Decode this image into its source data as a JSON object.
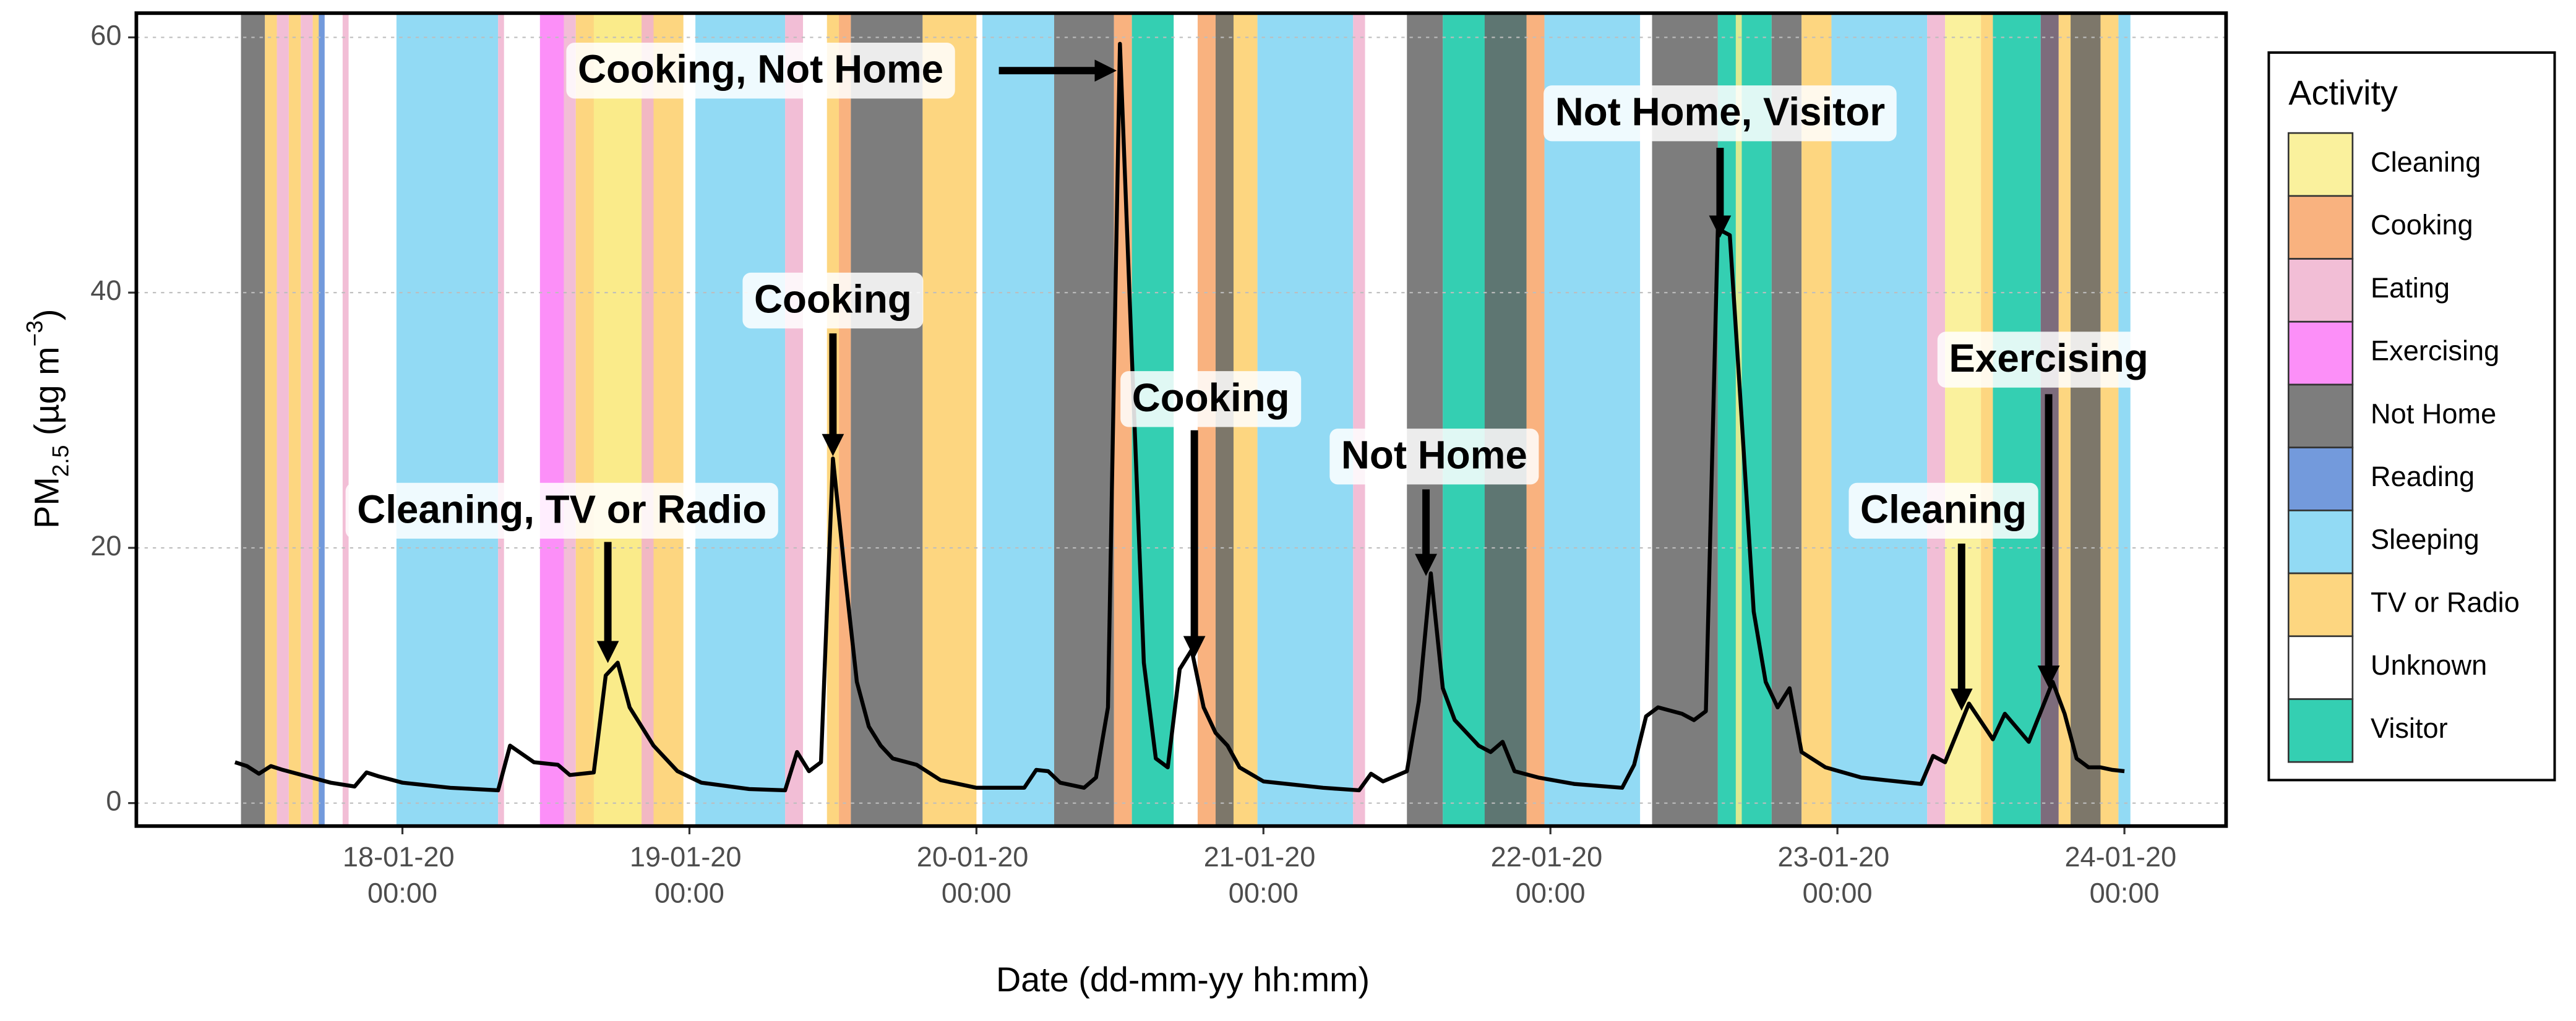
{
  "chart_data": {
    "type": "line",
    "xlabel": "Date (dd-mm-yy hh:mm)",
    "ylabel": [
      "PM",
      "2.5",
      " (µg m",
      "−3",
      ")"
    ],
    "legend_title": "Activity",
    "legend_position": "right",
    "grid": true,
    "line_color": "#000000",
    "xlim": [
      "17-01-20 01:45",
      "24-01-20 08:30"
    ],
    "xticks": [
      "18-01-20 00:00",
      "19-01-20 00:00",
      "20-01-20 00:00",
      "21-01-20 00:00",
      "22-01-20 00:00",
      "23-01-20 00:00",
      "24-01-20 00:00"
    ],
    "ylim": [
      -1.8,
      61.9
    ],
    "yticks": [
      0,
      20,
      40,
      60
    ],
    "activities": [
      {
        "name": "Cleaning",
        "color": "#f9ef8c"
      },
      {
        "name": "Cooking",
        "color": "#f8a468"
      },
      {
        "name": "Eating",
        "color": "#f0b3cf"
      },
      {
        "name": "Exercising",
        "color": "#fb7bf7"
      },
      {
        "name": "Not Home",
        "color": "#666666"
      },
      {
        "name": "Reading",
        "color": "#5b88d6"
      },
      {
        "name": "Sleeping",
        "color": "#7fd3f2"
      },
      {
        "name": "TV or Radio",
        "color": "#fdcf6a"
      },
      {
        "name": "Unknown",
        "color": "#ffffff"
      },
      {
        "name": "Visitor",
        "color": "#10c7a5"
      }
    ],
    "bands": [
      {
        "activity": "Not Home",
        "start": "17-01-20 10:30",
        "end": "17-01-20 12:30"
      },
      {
        "activity": "TV or Radio",
        "start": "17-01-20 12:30",
        "end": "17-01-20 13:30"
      },
      {
        "activity": "Eating",
        "start": "17-01-20 13:30",
        "end": "17-01-20 14:30"
      },
      {
        "activity": "TV or Radio",
        "start": "17-01-20 14:30",
        "end": "17-01-20 15:30"
      },
      {
        "activity": "Eating",
        "start": "17-01-20 15:30",
        "end": "17-01-20 16:30"
      },
      {
        "activity": "TV or Radio",
        "start": "17-01-20 16:30",
        "end": "17-01-20 17:00"
      },
      {
        "activity": "Reading",
        "start": "17-01-20 17:00",
        "end": "17-01-20 17:30"
      },
      {
        "activity": "Unknown",
        "start": "17-01-20 17:30",
        "end": "17-01-20 19:00"
      },
      {
        "activity": "Eating",
        "start": "17-01-20 19:00",
        "end": "17-01-20 19:30"
      },
      {
        "activity": "Unknown",
        "start": "17-01-20 19:30",
        "end": "17-01-20 23:30"
      },
      {
        "activity": "Sleeping",
        "start": "17-01-20 23:30",
        "end": "18-01-20 08:00"
      },
      {
        "activity": "Eating",
        "start": "18-01-20 08:00",
        "end": "18-01-20 08:30"
      },
      {
        "activity": "Unknown",
        "start": "18-01-20 08:30",
        "end": "18-01-20 11:30"
      },
      {
        "activity": "Exercising",
        "start": "18-01-20 11:30",
        "end": "18-01-20 13:30"
      },
      {
        "activity": "Eating",
        "start": "18-01-20 13:30",
        "end": "18-01-20 14:30"
      },
      {
        "activity": "TV or Radio",
        "start": "18-01-20 14:30",
        "end": "18-01-20 23:30"
      },
      {
        "activity": "Cleaning",
        "start": "18-01-20 16:00",
        "end": "18-01-20 20:00"
      },
      {
        "activity": "Eating",
        "start": "18-01-20 20:00",
        "end": "18-01-20 21:00"
      },
      {
        "activity": "Unknown",
        "start": "18-01-20 23:30",
        "end": "19-01-20 00:30"
      },
      {
        "activity": "Sleeping",
        "start": "19-01-20 00:30",
        "end": "19-01-20 08:00"
      },
      {
        "activity": "Eating",
        "start": "19-01-20 08:00",
        "end": "19-01-20 09:30"
      },
      {
        "activity": "Unknown",
        "start": "19-01-20 09:30",
        "end": "19-01-20 11:30"
      },
      {
        "activity": "TV or Radio",
        "start": "19-01-20 11:30",
        "end": "19-01-20 12:30"
      },
      {
        "activity": "Cooking",
        "start": "19-01-20 12:30",
        "end": "19-01-20 13:30"
      },
      {
        "activity": "Not Home",
        "start": "19-01-20 13:30",
        "end": "19-01-20 19:30"
      },
      {
        "activity": "TV or Radio",
        "start": "19-01-20 19:30",
        "end": "20-01-20 00:00"
      },
      {
        "activity": "Sleeping",
        "start": "20-01-20 00:30",
        "end": "20-01-20 06:30"
      },
      {
        "activity": "Not Home",
        "start": "20-01-20 06:30",
        "end": "20-01-20 11:30"
      },
      {
        "activity": "Cooking",
        "start": "20-01-20 11:30",
        "end": "20-01-20 13:00"
      },
      {
        "activity": "Visitor",
        "start": "20-01-20 13:00",
        "end": "20-01-20 16:30"
      },
      {
        "activity": "Unknown",
        "start": "20-01-20 16:30",
        "end": "20-01-20 18:30"
      },
      {
        "activity": "Cooking",
        "start": "20-01-20 18:30",
        "end": "20-01-20 20:00"
      },
      {
        "activity": "TV or Radio",
        "start": "20-01-20 20:00",
        "end": "20-01-20 23:30"
      },
      {
        "activity": "Not Home",
        "start": "20-01-20 20:00",
        "end": "20-01-20 21:30"
      },
      {
        "activity": "Sleeping",
        "start": "20-01-20 23:30",
        "end": "21-01-20 07:30"
      },
      {
        "activity": "Eating",
        "start": "21-01-20 07:30",
        "end": "21-01-20 08:30"
      },
      {
        "activity": "Unknown",
        "start": "21-01-20 08:30",
        "end": "21-01-20 12:00"
      },
      {
        "activity": "Not Home",
        "start": "21-01-20 12:00",
        "end": "21-01-20 15:00"
      },
      {
        "activity": "Visitor",
        "start": "21-01-20 15:00",
        "end": "21-01-20 22:00"
      },
      {
        "activity": "Not Home",
        "start": "21-01-20 18:30",
        "end": "21-01-20 22:00"
      },
      {
        "activity": "Cooking",
        "start": "21-01-20 22:00",
        "end": "21-01-20 23:30"
      },
      {
        "activity": "Sleeping",
        "start": "21-01-20 23:30",
        "end": "22-01-20 07:30"
      },
      {
        "activity": "Unknown",
        "start": "22-01-20 07:30",
        "end": "22-01-20 08:30"
      },
      {
        "activity": "Not Home",
        "start": "22-01-20 08:30",
        "end": "22-01-20 14:00"
      },
      {
        "activity": "Visitor",
        "start": "22-01-20 14:00",
        "end": "22-01-20 18:30"
      },
      {
        "activity": "Cleaning",
        "start": "22-01-20 15:30",
        "end": "22-01-20 16:00"
      },
      {
        "activity": "Not Home",
        "start": "22-01-20 18:30",
        "end": "22-01-20 21:00"
      },
      {
        "activity": "TV or Radio",
        "start": "22-01-20 21:00",
        "end": "22-01-20 23:30"
      },
      {
        "activity": "Sleeping",
        "start": "22-01-20 23:30",
        "end": "23-01-20 07:30"
      },
      {
        "activity": "Eating",
        "start": "23-01-20 07:30",
        "end": "23-01-20 09:00"
      },
      {
        "activity": "Cleaning",
        "start": "23-01-20 09:00",
        "end": "23-01-20 12:00"
      },
      {
        "activity": "TV or Radio",
        "start": "23-01-20 12:00",
        "end": "23-01-20 13:00"
      },
      {
        "activity": "Visitor",
        "start": "23-01-20 13:00",
        "end": "23-01-20 17:00"
      },
      {
        "activity": "Exercising",
        "start": "23-01-20 17:00",
        "end": "23-01-20 18:30"
      },
      {
        "activity": "Not Home",
        "start": "23-01-20 17:00",
        "end": "23-01-20 18:30"
      },
      {
        "activity": "TV or Radio",
        "start": "23-01-20 18:30",
        "end": "23-01-20 23:30"
      },
      {
        "activity": "Not Home",
        "start": "23-01-20 19:30",
        "end": "23-01-20 22:00"
      },
      {
        "activity": "Sleeping",
        "start": "23-01-20 23:30",
        "end": "24-01-20 00:30"
      }
    ],
    "x": [
      "17-01-20 10:00",
      "17-01-20 11:00",
      "17-01-20 12:00",
      "17-01-20 13:00",
      "17-01-20 14:00",
      "17-01-20 16:00",
      "17-01-20 18:00",
      "17-01-20 20:00",
      "17-01-20 21:00",
      "17-01-20 22:00",
      "18-01-20 00:00",
      "18-01-20 04:00",
      "18-01-20 08:00",
      "18-01-20 09:00",
      "18-01-20 11:00",
      "18-01-20 13:00",
      "18-01-20 14:00",
      "18-01-20 16:00",
      "18-01-20 17:00",
      "18-01-20 18:00",
      "18-01-20 19:00",
      "18-01-20 21:00",
      "18-01-20 23:00",
      "19-01-20 01:00",
      "19-01-20 05:00",
      "19-01-20 08:00",
      "19-01-20 09:00",
      "19-01-20 10:00",
      "19-01-20 11:00",
      "19-01-20 12:00",
      "19-01-20 13:00",
      "19-01-20 14:00",
      "19-01-20 15:00",
      "19-01-20 16:00",
      "19-01-20 17:00",
      "19-01-20 19:00",
      "19-01-20 21:00",
      "20-01-20 00:00",
      "20-01-20 04:00",
      "20-01-20 05:00",
      "20-01-20 06:00",
      "20-01-20 07:00",
      "20-01-20 09:00",
      "20-01-20 10:00",
      "20-01-20 11:00",
      "20-01-20 12:00",
      "20-01-20 13:00",
      "20-01-20 14:00",
      "20-01-20 15:00",
      "20-01-20 16:00",
      "20-01-20 17:00",
      "20-01-20 18:00",
      "20-01-20 19:00",
      "20-01-20 20:00",
      "20-01-20 21:00",
      "20-01-20 22:00",
      "21-01-20 00:00",
      "21-01-20 05:00",
      "21-01-20 08:00",
      "21-01-20 09:00",
      "21-01-20 10:00",
      "21-01-20 12:00",
      "21-01-20 13:00",
      "21-01-20 14:00",
      "21-01-20 15:00",
      "21-01-20 16:00",
      "21-01-20 18:00",
      "21-01-20 19:00",
      "21-01-20 20:00",
      "21-01-20 21:00",
      "21-01-20 23:00",
      "22-01-20 02:00",
      "22-01-20 06:00",
      "22-01-20 07:00",
      "22-01-20 08:00",
      "22-01-20 09:00",
      "22-01-20 11:00",
      "22-01-20 12:00",
      "22-01-20 13:00",
      "22-01-20 14:00",
      "22-01-20 15:00",
      "22-01-20 16:00",
      "22-01-20 17:00",
      "22-01-20 18:00",
      "22-01-20 19:00",
      "22-01-20 20:00",
      "22-01-20 21:00",
      "22-01-20 23:00",
      "23-01-20 02:00",
      "23-01-20 07:00",
      "23-01-20 08:00",
      "23-01-20 09:00",
      "23-01-20 11:00",
      "23-01-20 13:00",
      "23-01-20 14:00",
      "23-01-20 16:00",
      "23-01-20 18:00",
      "23-01-20 19:00",
      "23-01-20 20:00",
      "23-01-20 21:00",
      "23-01-20 22:00",
      "23-01-20 23:00",
      "24-01-20 00:00"
    ],
    "values": [
      3.2,
      2.9,
      2.3,
      2.9,
      2.6,
      2.1,
      1.6,
      1.3,
      2.4,
      2.1,
      1.6,
      1.2,
      1.0,
      4.5,
      3.2,
      3.0,
      2.2,
      2.4,
      10.0,
      11.0,
      7.5,
      4.5,
      2.5,
      1.6,
      1.1,
      1.0,
      4.0,
      2.5,
      3.2,
      27.0,
      18.0,
      9.5,
      6.0,
      4.5,
      3.5,
      3.0,
      1.8,
      1.2,
      1.2,
      2.6,
      2.5,
      1.6,
      1.2,
      2.0,
      7.5,
      59.5,
      35.0,
      11.0,
      3.5,
      2.8,
      10.5,
      12.0,
      7.5,
      5.5,
      4.5,
      2.8,
      1.7,
      1.2,
      1.0,
      2.3,
      1.7,
      2.5,
      8.0,
      18.0,
      9.0,
      6.5,
      4.5,
      4.0,
      4.8,
      2.5,
      2.0,
      1.5,
      1.2,
      3.0,
      6.8,
      7.5,
      7.0,
      6.5,
      7.2,
      45.0,
      44.5,
      30.0,
      15.0,
      9.5,
      7.5,
      9.0,
      4.0,
      2.8,
      2.0,
      1.5,
      3.7,
      3.2,
      7.8,
      5.0,
      7.0,
      4.8,
      9.5,
      7.0,
      3.5,
      2.8,
      2.8,
      2.6,
      2.5
    ],
    "annotations": [
      "Cleaning, TV or Radio",
      "Cooking",
      "Cooking, Not Home",
      "Cooking",
      "Not Home",
      "Not Home, Visitor",
      "Cleaning",
      "Exercising"
    ]
  }
}
